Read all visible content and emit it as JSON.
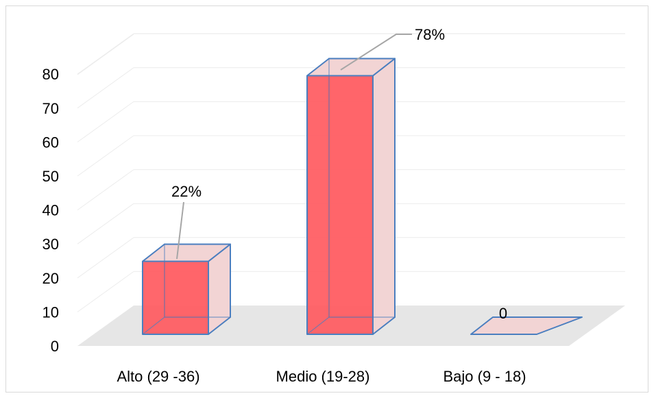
{
  "chart_data": {
    "type": "bar",
    "categories": [
      "Alto (29 -36)",
      "Medio (19-28)",
      "Bajo (9 - 18)"
    ],
    "values": [
      22,
      78,
      0
    ],
    "data_labels": [
      "22%",
      "78%",
      "0"
    ],
    "yticks": [
      "0",
      "10",
      "20",
      "30",
      "40",
      "50",
      "60",
      "70",
      "80"
    ],
    "ylim": [
      0,
      80
    ],
    "grid": true,
    "three_d": true,
    "colors": {
      "bar_front": "#ff5a5f",
      "bar_side": "#f2d4d4",
      "bar_edge": "#4a7ebf",
      "floor": "#e6e6e6",
      "gridline": "#ececec",
      "leader": "#a6a6a6"
    }
  }
}
